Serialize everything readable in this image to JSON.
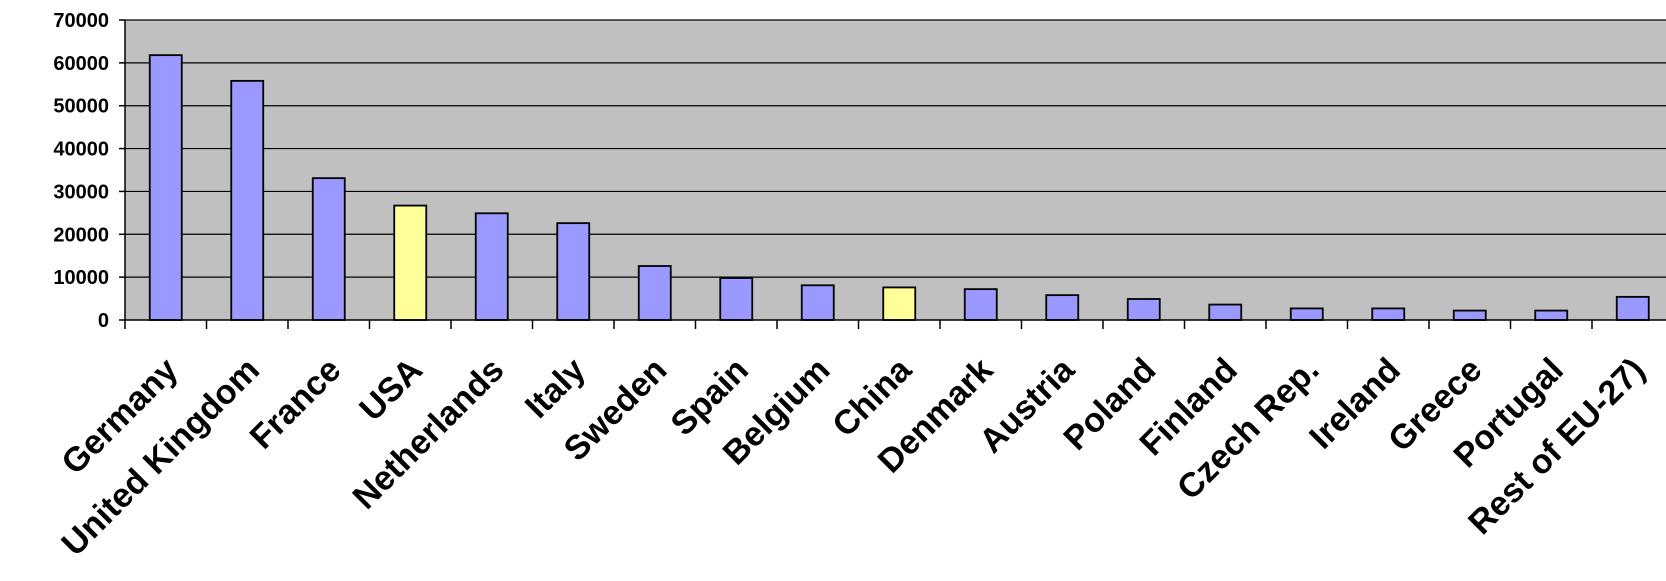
{
  "chart_data": {
    "type": "bar",
    "title": "",
    "xlabel": "",
    "ylabel": "",
    "ylim": [
      0,
      70000
    ],
    "yticks": [
      0,
      10000,
      20000,
      30000,
      40000,
      50000,
      60000,
      70000
    ],
    "grid": true,
    "legend": "none",
    "colors": {
      "plot_background": "#c0c0c0",
      "default_bar": "#9999ff",
      "highlight_bar": "#ffff99",
      "bar_outline": "#000000",
      "gridline": "#000000"
    },
    "categories": [
      "Germany",
      "United Kingdom",
      "France",
      "USA",
      "Netherlands",
      "Italy",
      "Sweden",
      "Spain",
      "Belgium",
      "China",
      "Denmark",
      "Austria",
      "Poland",
      "Finland",
      "Czech Rep.",
      "Ireland",
      "Greece",
      "Portugal",
      "Rest of EU-27)"
    ],
    "values": [
      61800,
      55800,
      33100,
      26700,
      24900,
      22600,
      12600,
      9800,
      8100,
      7600,
      7200,
      5800,
      4900,
      3600,
      2700,
      2700,
      2200,
      2200,
      5400
    ],
    "highlighted": [
      false,
      false,
      false,
      true,
      false,
      false,
      false,
      false,
      false,
      true,
      false,
      false,
      false,
      false,
      false,
      false,
      false,
      false,
      false
    ]
  }
}
